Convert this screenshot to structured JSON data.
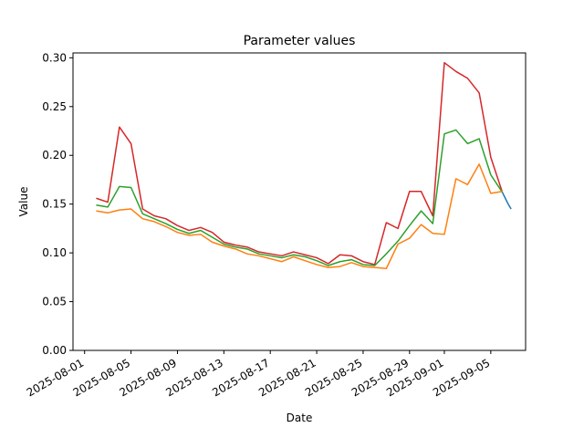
{
  "chart_data": {
    "type": "line",
    "title": "Parameter values",
    "xlabel": "Date",
    "ylabel": "Value",
    "xlim": [
      "2025-07-31",
      "2025-09-08"
    ],
    "ylim": [
      0,
      0.305
    ],
    "xticks": [
      "2025-08-01",
      "2025-08-05",
      "2025-08-09",
      "2025-08-13",
      "2025-08-17",
      "2025-08-21",
      "2025-08-25",
      "2025-08-29",
      "2025-09-01",
      "2025-09-05"
    ],
    "yticks": [
      "0.00",
      "0.05",
      "0.10",
      "0.15",
      "0.20",
      "0.25",
      "0.30"
    ],
    "grid": false,
    "legend": "none",
    "x": [
      "2025-08-02",
      "2025-08-03",
      "2025-08-04",
      "2025-08-05",
      "2025-08-06",
      "2025-08-07",
      "2025-08-08",
      "2025-08-09",
      "2025-08-10",
      "2025-08-11",
      "2025-08-12",
      "2025-08-13",
      "2025-08-14",
      "2025-08-15",
      "2025-08-16",
      "2025-08-17",
      "2025-08-18",
      "2025-08-19",
      "2025-08-20",
      "2025-08-21",
      "2025-08-22",
      "2025-08-23",
      "2025-08-24",
      "2025-08-25",
      "2025-08-26",
      "2025-08-27",
      "2025-08-28",
      "2025-08-29",
      "2025-08-30",
      "2025-08-31",
      "2025-09-01",
      "2025-09-02",
      "2025-09-03",
      "2025-09-04",
      "2025-09-05",
      "2025-09-06"
    ],
    "series": [
      {
        "color": "#d62728",
        "values": [
          0.156,
          0.152,
          0.229,
          0.212,
          0.145,
          0.138,
          0.135,
          0.128,
          0.123,
          0.126,
          0.121,
          0.111,
          0.108,
          0.106,
          0.101,
          0.099,
          0.097,
          0.101,
          0.098,
          0.095,
          0.089,
          0.098,
          0.097,
          0.091,
          0.088,
          0.131,
          0.125,
          0.163,
          0.163,
          0.138,
          0.295,
          0.286,
          0.279,
          0.264,
          0.198,
          0.162
        ]
      },
      {
        "color": "#2ca02c",
        "values": [
          0.149,
          0.147,
          0.168,
          0.167,
          0.14,
          0.135,
          0.13,
          0.124,
          0.12,
          0.123,
          0.116,
          0.109,
          0.106,
          0.104,
          0.099,
          0.097,
          0.095,
          0.098,
          0.096,
          0.092,
          0.087,
          0.091,
          0.093,
          0.088,
          0.087,
          0.099,
          0.112,
          0.128,
          0.143,
          0.13,
          0.222,
          0.226,
          0.212,
          0.217,
          0.18,
          0.162
        ]
      },
      {
        "color": "#ff7f0e",
        "values": [
          0.143,
          0.141,
          0.144,
          0.145,
          0.135,
          0.132,
          0.127,
          0.121,
          0.118,
          0.119,
          0.111,
          0.107,
          0.104,
          0.099,
          0.097,
          0.094,
          0.091,
          0.096,
          0.092,
          0.088,
          0.085,
          0.086,
          0.09,
          0.086,
          0.085,
          0.084,
          0.109,
          0.115,
          0.129,
          0.12,
          0.119,
          0.176,
          0.17,
          0.191,
          0.161,
          0.163
        ]
      },
      {
        "color": "#1f77b4",
        "x": [
          "2025-09-06",
          "2025-09-06T06:00",
          "2025-09-06T12:00",
          "2025-09-06T18:00"
        ],
        "values": [
          0.162,
          0.156,
          0.15,
          0.145
        ]
      }
    ]
  }
}
